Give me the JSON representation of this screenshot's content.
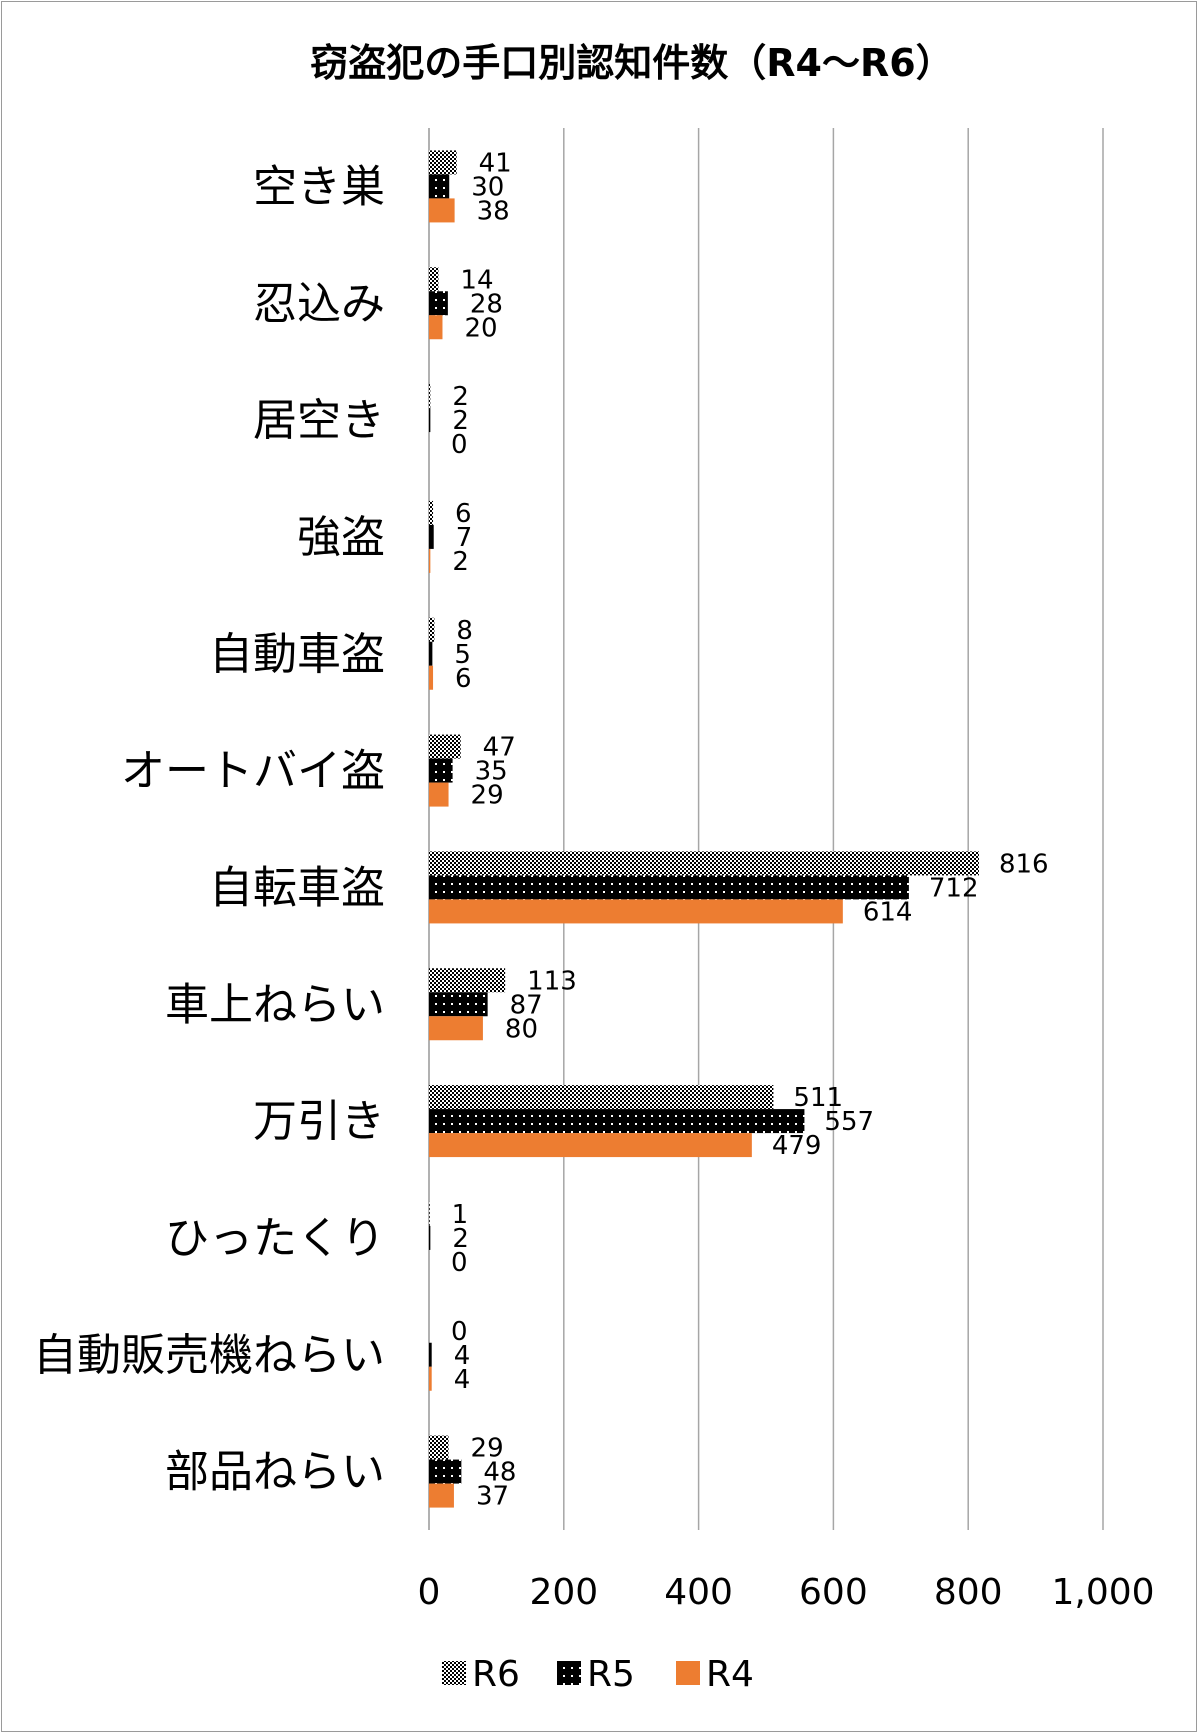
{
  "chart_data": {
    "type": "bar",
    "orientation": "horizontal",
    "title": "窃盗犯の手口別認知件数（R4～R6）",
    "categories": [
      "空き巣",
      "忍込み",
      "居空き",
      "強盗",
      "自動車盗",
      "オートバイ盗",
      "自転車盗",
      "車上ねらい",
      "万引き",
      "ひったくり",
      "自動販売機ねらい",
      "部品ねらい"
    ],
    "series": [
      {
        "name": "R6",
        "pattern": "dense-dots",
        "color": "#000000",
        "values": [
          41,
          14,
          2,
          6,
          8,
          47,
          816,
          113,
          511,
          1,
          0,
          29
        ]
      },
      {
        "name": "R5",
        "pattern": "sparse-white-dots",
        "color": "#000000",
        "values": [
          30,
          28,
          2,
          7,
          5,
          35,
          712,
          87,
          557,
          2,
          4,
          48
        ]
      },
      {
        "name": "R4",
        "pattern": "solid",
        "color": "#ED7D31",
        "values": [
          38,
          20,
          0,
          2,
          6,
          29,
          614,
          80,
          479,
          0,
          4,
          37
        ]
      }
    ],
    "xlim": [
      0,
      1000
    ],
    "xticks": [
      "0",
      "200",
      "400",
      "600",
      "800",
      "1,000"
    ],
    "grid": "vertical",
    "legend_position": "bottom",
    "xlabel": "",
    "ylabel": ""
  }
}
